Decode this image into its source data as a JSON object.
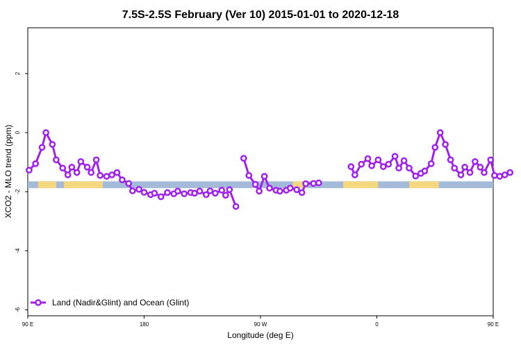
{
  "chart_data": {
    "type": "line",
    "title": "7.5S-2.5S February (Ver 10)   2015-01-01 to 2020-12-18",
    "xlabel": "Longitude (deg E)",
    "ylabel": "XCO2 - MLO trend (ppm)",
    "xlim": [
      90,
      450
    ],
    "ylim": [
      -6.2,
      3.55
    ],
    "x_ticks": [
      {
        "value": 90,
        "label": "90 E"
      },
      {
        "value": 180,
        "label": "180"
      },
      {
        "value": 270,
        "label": "90 W"
      },
      {
        "value": 360,
        "label": "0"
      },
      {
        "value": 450,
        "label": "90 E"
      },
      {
        "value": 540,
        "label": "180"
      }
    ],
    "y_ticks": [
      {
        "value": 2,
        "label": "2"
      },
      {
        "value": 0,
        "label": "0"
      },
      {
        "value": -2,
        "label": "-2"
      },
      {
        "value": -4,
        "label": "-4"
      },
      {
        "value": -6,
        "label": "-6"
      }
    ],
    "legend": "bottom-left",
    "grid": false,
    "surface_strip": {
      "y_range": [
        -1.88,
        -1.65
      ],
      "ocean_color": "#a3bbd9",
      "land_color": "#f5d77f",
      "land_segments": [
        [
          98,
          112
        ],
        [
          118,
          148
        ],
        [
          295,
          306
        ],
        [
          334,
          361
        ],
        [
          385,
          408
        ],
        [
          458,
          472
        ],
        [
          478,
          508
        ],
        [
          510,
          532
        ]
      ]
    },
    "series": [
      {
        "name": "Land (Nadir&Glint) and Ocean (Glint)",
        "color": "#a020f0",
        "segments": [
          [
            [
              91,
              -1.27
            ],
            [
              96,
              -1.05
            ],
            [
              101,
              -0.5
            ],
            [
              104,
              0.0
            ],
            [
              109,
              -0.4
            ],
            [
              112,
              -0.92
            ],
            [
              117,
              -1.2
            ],
            [
              121,
              -1.43
            ],
            [
              124,
              -1.17
            ],
            [
              128,
              -1.35
            ],
            [
              131,
              -0.98
            ],
            [
              136,
              -1.17
            ],
            [
              139,
              -1.35
            ],
            [
              143,
              -0.92
            ],
            [
              146,
              -1.45
            ],
            [
              151,
              -1.48
            ],
            [
              155,
              -1.43
            ],
            [
              159,
              -1.35
            ],
            [
              163,
              -1.6
            ],
            [
              168,
              -1.72
            ],
            [
              171,
              -1.97
            ],
            [
              176,
              -1.92
            ],
            [
              180,
              -2.02
            ],
            [
              185,
              -2.1
            ],
            [
              188,
              -2.05
            ],
            [
              193,
              -2.17
            ],
            [
              198,
              -2.03
            ],
            [
              203,
              -2.07
            ],
            [
              206,
              -1.98
            ],
            [
              211,
              -2.07
            ],
            [
              216,
              -2.03
            ],
            [
              219,
              -2.05
            ],
            [
              223,
              -1.98
            ],
            [
              228,
              -2.1
            ],
            [
              231,
              -1.97
            ],
            [
              235,
              -2.05
            ],
            [
              240,
              -1.95
            ],
            [
              243,
              -2.12
            ],
            [
              246,
              -1.93
            ],
            [
              251,
              -2.5
            ]
          ],
          [
            [
              257,
              -0.87
            ],
            [
              261,
              -1.45
            ],
            [
              266,
              -1.75
            ],
            [
              269,
              -1.98
            ],
            [
              273,
              -1.48
            ],
            [
              277,
              -1.88
            ],
            [
              282,
              -1.95
            ],
            [
              285,
              -1.98
            ],
            [
              290,
              -1.95
            ],
            [
              293,
              -1.88
            ],
            [
              298,
              -1.93
            ],
            [
              302,
              -2.03
            ],
            [
              305,
              -1.73
            ],
            [
              311,
              -1.72
            ],
            [
              315,
              -1.7
            ]
          ],
          [
            [
              340,
              -1.15
            ],
            [
              343,
              -1.43
            ],
            [
              348,
              -1.07
            ],
            [
              353,
              -0.88
            ],
            [
              356,
              -1.12
            ],
            [
              361,
              -0.92
            ],
            [
              365,
              -1.15
            ],
            [
              369,
              -1.07
            ],
            [
              374,
              -0.8
            ],
            [
              377,
              -1.2
            ],
            [
              381,
              -0.95
            ],
            [
              385,
              -1.2
            ],
            [
              390,
              -1.47
            ],
            [
              394,
              -1.38
            ],
            [
              397,
              -1.3
            ],
            [
              402,
              -1.05
            ],
            [
              405,
              -0.5
            ],
            [
              409,
              0.0
            ],
            [
              413,
              -0.4
            ],
            [
              417,
              -0.92
            ],
            [
              420,
              -1.2
            ],
            [
              425,
              -1.43
            ],
            [
              428,
              -1.17
            ],
            [
              432,
              -1.35
            ],
            [
              436,
              -0.98
            ],
            [
              440,
              -1.17
            ],
            [
              443,
              -1.35
            ],
            [
              448,
              -0.92
            ],
            [
              451,
              -1.45
            ],
            [
              455,
              -1.48
            ],
            [
              459,
              -1.43
            ],
            [
              463,
              -1.35
            ]
          ]
        ]
      }
    ]
  }
}
